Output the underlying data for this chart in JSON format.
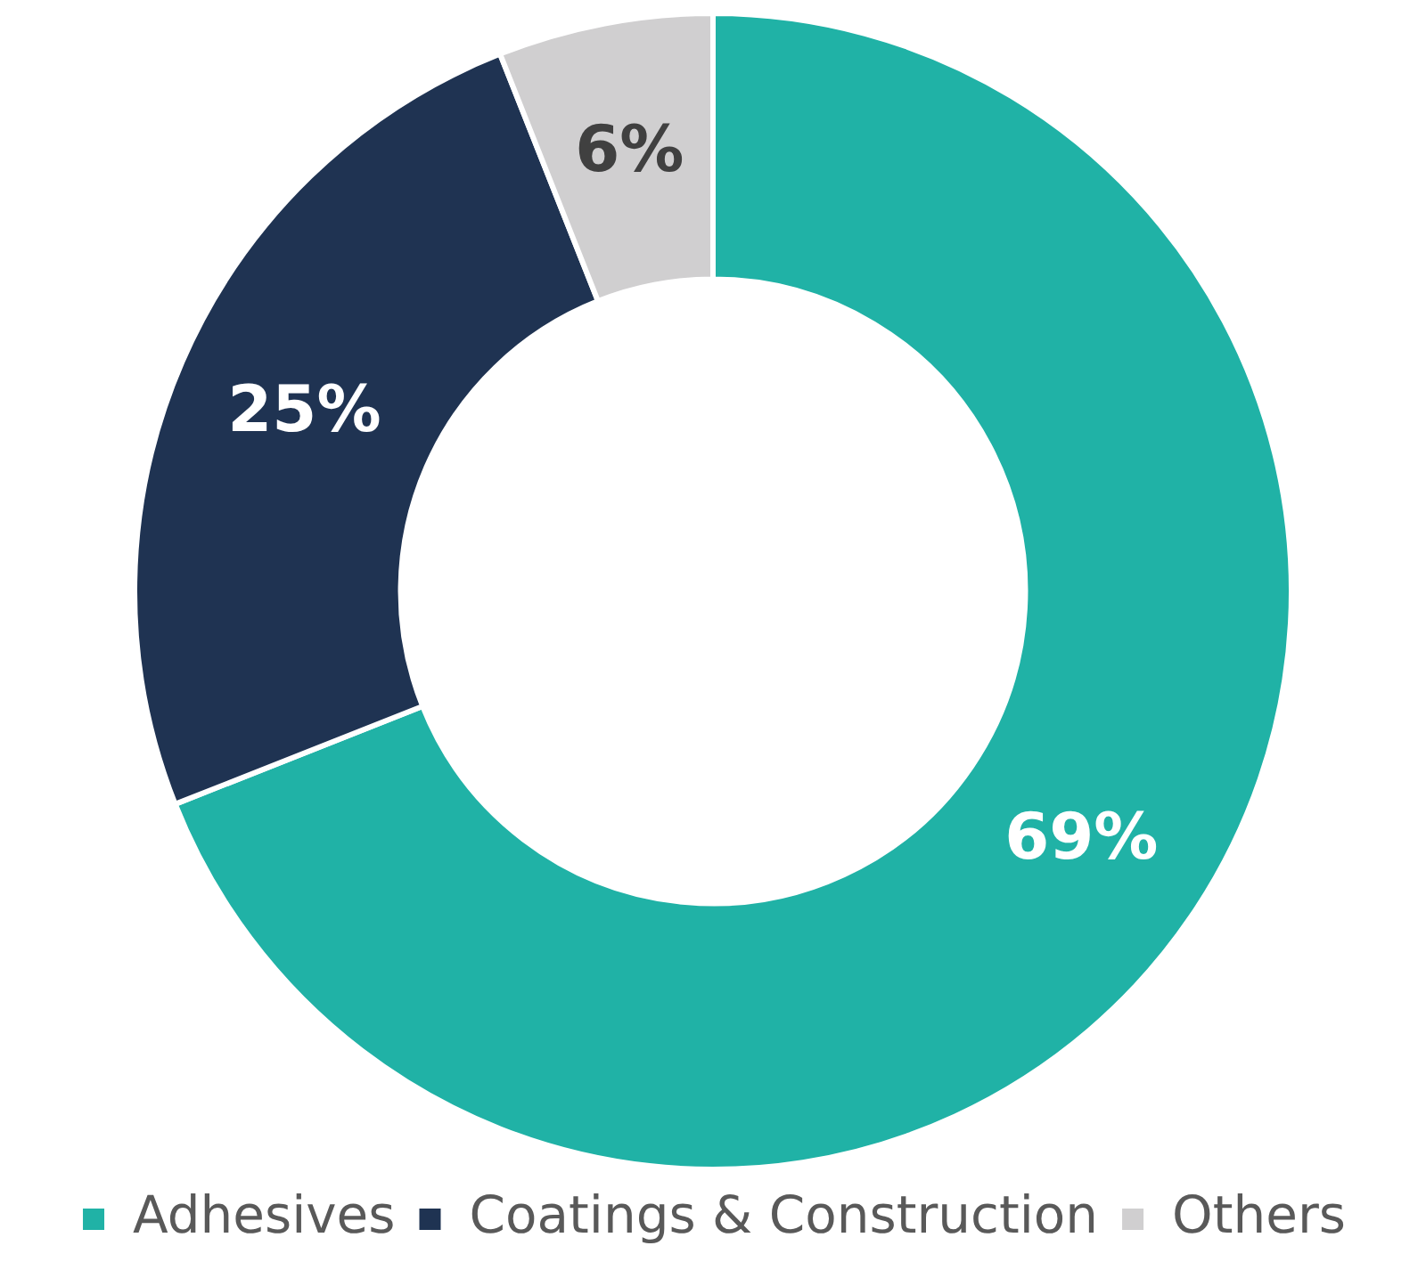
{
  "chart_data": {
    "type": "donut",
    "categories": [
      "Adhesives",
      "Coatings & Construction",
      "Others"
    ],
    "values": [
      69,
      25,
      6
    ],
    "colors": [
      "#20b2a6",
      "#1f3352",
      "#d0cfd0"
    ],
    "value_labels": [
      "69%",
      "25%",
      "6%"
    ],
    "legend": "bottom"
  }
}
